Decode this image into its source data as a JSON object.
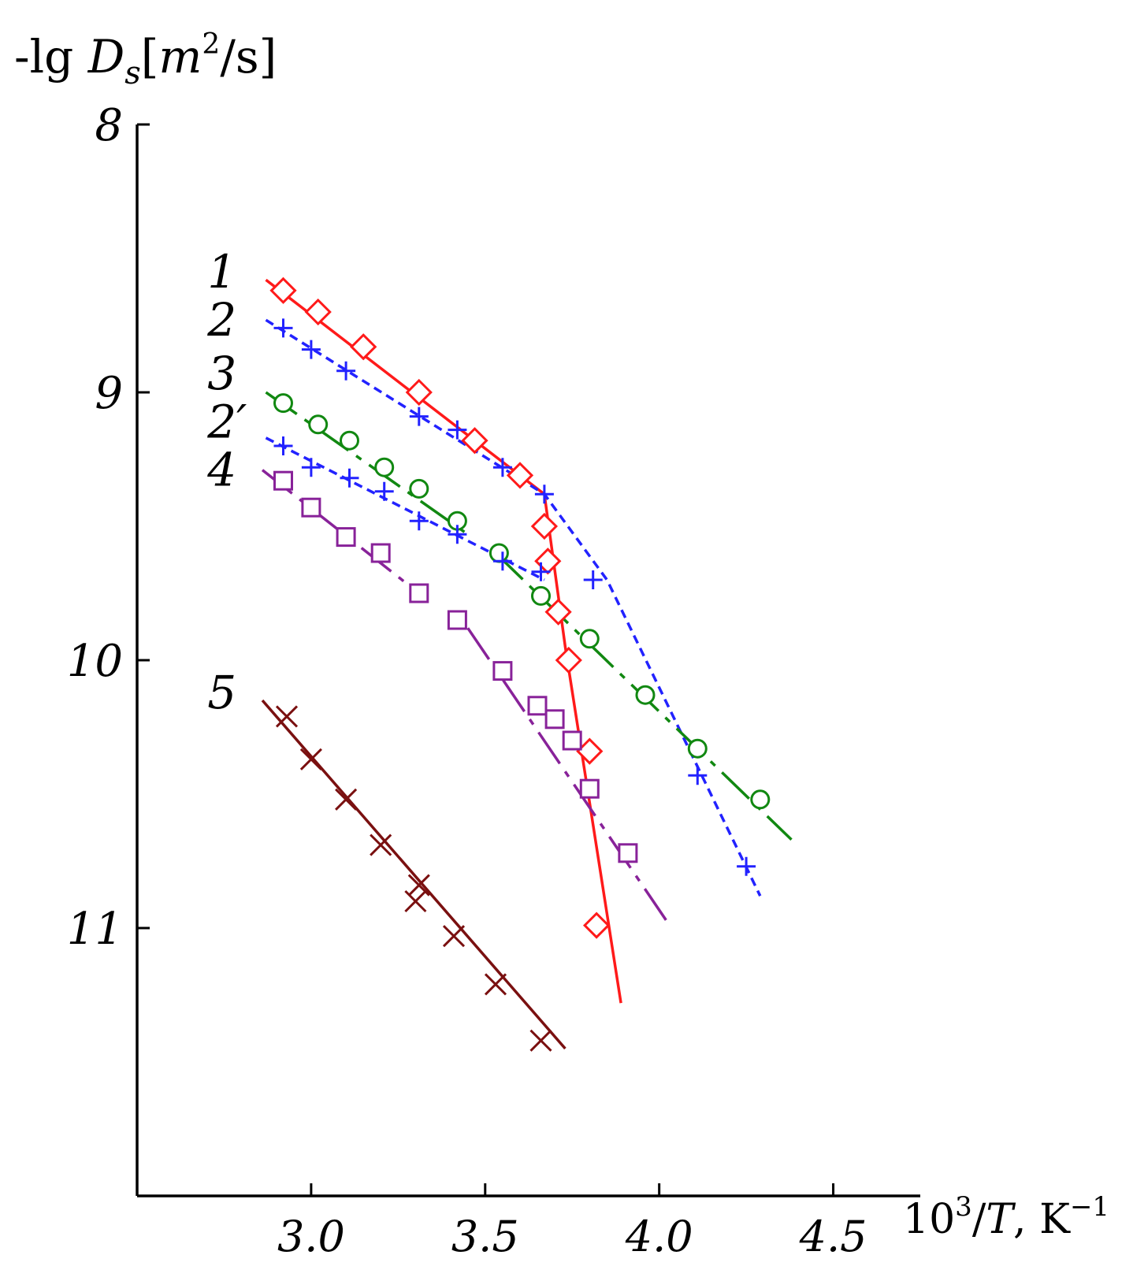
{
  "chart_data": {
    "type": "scatter",
    "ylabel": {
      "prefix": "-lg ",
      "symbol": "D",
      "sub": "s",
      "unit_open": "[",
      "unit_m": "m",
      "unit_exp": "2",
      "unit_rest": "/s]"
    },
    "xlabel": {
      "base": "10",
      "exp": "3",
      "slash": "/",
      "sym": "T",
      "unit": ", K",
      "unit_exp": "−1"
    },
    "xlim": [
      2.5,
      4.75
    ],
    "ylim": [
      12.0,
      8.0
    ],
    "y_inverted": true,
    "x_ticks": [
      3.0,
      3.5,
      4.0,
      4.5
    ],
    "x_tick_labels": [
      "3.0",
      "3.5",
      "4.0",
      "4.5"
    ],
    "y_ticks": [
      8,
      9,
      10,
      11
    ],
    "y_tick_labels": [
      "8",
      "9",
      "10",
      "11"
    ],
    "grid": false,
    "series": [
      {
        "name": "1",
        "color": "#ff1a1a",
        "marker": "diamond",
        "line": "solid",
        "label_at": [
          2.77,
          8.55
        ],
        "points": [
          [
            2.92,
            8.62
          ],
          [
            3.02,
            8.7
          ],
          [
            3.15,
            8.83
          ],
          [
            3.31,
            9.0
          ],
          [
            3.47,
            9.18
          ],
          [
            3.6,
            9.31
          ],
          [
            3.67,
            9.5
          ],
          [
            3.68,
            9.63
          ],
          [
            3.71,
            9.82
          ],
          [
            3.74,
            10.0
          ],
          [
            3.8,
            10.34
          ],
          [
            3.82,
            10.99
          ]
        ],
        "fit": [
          [
            [
              2.87,
              8.58
            ],
            [
              3.67,
              9.38
            ],
            [
              3.73,
              9.95
            ],
            [
              3.89,
              11.28
            ]
          ]
        ]
      },
      {
        "name": "2",
        "color": "#2222ff",
        "marker": "plus",
        "line": "dashed",
        "label_at": [
          2.77,
          8.73
        ],
        "points": [
          [
            2.92,
            8.76
          ],
          [
            3.0,
            8.84
          ],
          [
            3.1,
            8.92
          ],
          [
            3.31,
            9.09
          ],
          [
            3.42,
            9.14
          ],
          [
            3.55,
            9.28
          ],
          [
            3.67,
            9.38
          ],
          [
            3.81,
            9.7
          ],
          [
            4.11,
            10.43
          ],
          [
            4.25,
            10.77
          ]
        ],
        "fit": [
          [
            [
              2.87,
              8.73
            ],
            [
              3.67,
              9.38
            ],
            [
              3.85,
              9.7
            ],
            [
              4.29,
              10.88
            ]
          ]
        ]
      },
      {
        "name": "3",
        "color": "#118811",
        "marker": "circle",
        "line": "dash-dot",
        "label_at": [
          2.77,
          8.93
        ],
        "points": [
          [
            2.92,
            9.04
          ],
          [
            3.02,
            9.12
          ],
          [
            3.11,
            9.18
          ],
          [
            3.21,
            9.28
          ],
          [
            3.31,
            9.36
          ],
          [
            3.42,
            9.48
          ],
          [
            3.54,
            9.6
          ],
          [
            3.66,
            9.76
          ],
          [
            3.8,
            9.92
          ],
          [
            3.96,
            10.13
          ],
          [
            4.11,
            10.33
          ],
          [
            4.29,
            10.52
          ]
        ],
        "fit": [
          [
            [
              2.87,
              9.0
            ],
            [
              3.45,
              9.53
            ]
          ],
          [
            [
              3.53,
              9.6
            ],
            [
              4.38,
              10.67
            ]
          ]
        ]
      },
      {
        "name": "2′",
        "color": "#2222ff",
        "marker": "plus",
        "line": "dashed",
        "label_at": [
          2.77,
          9.11
        ],
        "points": [
          [
            2.92,
            9.2
          ],
          [
            3.0,
            9.28
          ],
          [
            3.11,
            9.32
          ],
          [
            3.21,
            9.37
          ],
          [
            3.31,
            9.48
          ],
          [
            3.42,
            9.53
          ],
          [
            3.55,
            9.63
          ],
          [
            3.66,
            9.67
          ]
        ],
        "fit": [
          [
            [
              2.87,
              9.17
            ],
            [
              3.67,
              9.7
            ]
          ]
        ]
      },
      {
        "name": "4",
        "color": "#882299",
        "marker": "square",
        "line": "dash-dot",
        "label_at": [
          2.77,
          9.29
        ],
        "points": [
          [
            2.92,
            9.33
          ],
          [
            3.0,
            9.43
          ],
          [
            3.1,
            9.54
          ],
          [
            3.2,
            9.6
          ],
          [
            3.31,
            9.75
          ],
          [
            3.42,
            9.85
          ],
          [
            3.55,
            10.04
          ],
          [
            3.65,
            10.17
          ],
          [
            3.7,
            10.22
          ],
          [
            3.75,
            10.3
          ],
          [
            3.8,
            10.48
          ],
          [
            3.91,
            10.72
          ]
        ],
        "fit": [
          [
            [
              2.86,
              9.29
            ],
            [
              3.31,
              9.75
            ]
          ],
          [
            [
              3.45,
              9.88
            ],
            [
              4.03,
              10.99
            ]
          ]
        ]
      },
      {
        "name": "5",
        "color": "#7a1010",
        "marker": "x",
        "line": "solid",
        "label_at": [
          2.77,
          10.12
        ],
        "points": [
          [
            2.93,
            10.21
          ],
          [
            3.0,
            10.37
          ],
          [
            3.1,
            10.52
          ],
          [
            3.2,
            10.69
          ],
          [
            3.31,
            10.84
          ],
          [
            3.3,
            10.9
          ],
          [
            3.41,
            11.03
          ],
          [
            3.53,
            11.21
          ],
          [
            3.66,
            11.42
          ]
        ],
        "fit": [
          [
            [
              2.86,
              10.15
            ],
            [
              3.73,
              11.45
            ]
          ]
        ]
      }
    ]
  }
}
